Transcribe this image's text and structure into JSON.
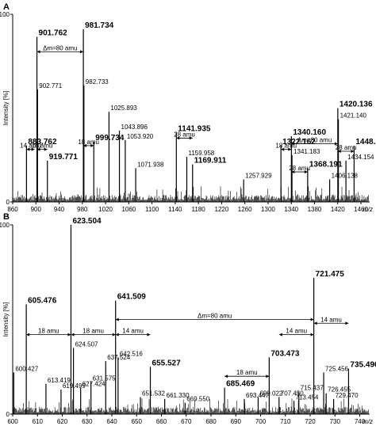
{
  "chart_data": [
    {
      "panel": "A",
      "type": "line",
      "ylabel": "Intensity [%]",
      "xlabel": "m/z",
      "xlim": [
        860,
        1475
      ],
      "ylim": [
        0,
        100
      ],
      "x_ticks": [
        860,
        900,
        940,
        980,
        1020,
        1060,
        1100,
        1140,
        1180,
        1220,
        1260,
        1300,
        1340,
        1380,
        1420,
        1460
      ],
      "y_ticks": [
        0,
        100
      ],
      "peaks": [
        {
          "mz": 901.762,
          "label": "901.762",
          "intensity": 88,
          "bold": true
        },
        {
          "mz": 981.734,
          "label": "981.734",
          "intensity": 92,
          "bold": true
        },
        {
          "mz": 902.771,
          "label": "902.771",
          "intensity": 60,
          "bold": false
        },
        {
          "mz": 982.733,
          "label": "982.733",
          "intensity": 62,
          "bold": false
        },
        {
          "mz": 1025.893,
          "label": "1025.893",
          "intensity": 48,
          "bold": false
        },
        {
          "mz": 883.762,
          "label": "883.762",
          "intensity": 30,
          "bold": true
        },
        {
          "mz": 919.771,
          "label": "919.771",
          "intensity": 22,
          "bold": true
        },
        {
          "mz": 999.734,
          "label": "999.734",
          "intensity": 32,
          "bold": true
        },
        {
          "mz": 1043.896,
          "label": "1043.896",
          "intensity": 38,
          "bold": false
        },
        {
          "mz": 1053.92,
          "label": "1053.920",
          "intensity": 33,
          "bold": false
        },
        {
          "mz": 1071.938,
          "label": "1071.938",
          "intensity": 18,
          "bold": false
        },
        {
          "mz": 1141.935,
          "label": "1141.935",
          "intensity": 37,
          "bold": true
        },
        {
          "mz": 1159.958,
          "label": "1159.958",
          "intensity": 24,
          "bold": false
        },
        {
          "mz": 1169.911,
          "label": "1169.911",
          "intensity": 20,
          "bold": true
        },
        {
          "mz": 1257.929,
          "label": "1257.929",
          "intensity": 12,
          "bold": false
        },
        {
          "mz": 1322.162,
          "label": "1322.162",
          "intensity": 30,
          "bold": true
        },
        {
          "mz": 1340.16,
          "label": "1340.160",
          "intensity": 35,
          "bold": true
        },
        {
          "mz": 1341.183,
          "label": "1341.183",
          "intensity": 25,
          "bold": false
        },
        {
          "mz": 1368.191,
          "label": "1368.191",
          "intensity": 18,
          "bold": true
        },
        {
          "mz": 1406.138,
          "label": "1406.138",
          "intensity": 12,
          "bold": false
        },
        {
          "mz": 1420.136,
          "label": "1420.136",
          "intensity": 50,
          "bold": true
        },
        {
          "mz": 1421.14,
          "label": "1421.140",
          "intensity": 44,
          "bold": false
        },
        {
          "mz": 1434.154,
          "label": "1434.154",
          "intensity": 22,
          "bold": false
        },
        {
          "mz": 1448.174,
          "label": "1448.174",
          "intensity": 30,
          "bold": true
        }
      ],
      "annotations": [
        "Δm=80 amu",
        "14 amu",
        "18 amu",
        "18 amu",
        "28 amu",
        "18 amu",
        "Δm=80 amu",
        "28 amu",
        "28 amu"
      ]
    },
    {
      "panel": "B",
      "type": "line",
      "ylabel": "Intensity [%]",
      "xlabel": "m/z",
      "xlim": [
        600,
        744
      ],
      "ylim": [
        0,
        100
      ],
      "x_ticks": [
        600,
        610,
        620,
        630,
        640,
        650,
        660,
        670,
        680,
        690,
        700,
        710,
        720,
        730,
        740
      ],
      "y_ticks": [
        0,
        100
      ],
      "peaks": [
        {
          "mz": 623.504,
          "label": "623.504",
          "intensity": 100,
          "bold": true
        },
        {
          "mz": 605.476,
          "label": "605.476",
          "intensity": 58,
          "bold": true
        },
        {
          "mz": 641.509,
          "label": "641.509",
          "intensity": 60,
          "bold": true
        },
        {
          "mz": 721.475,
          "label": "721.475",
          "intensity": 72,
          "bold": true
        },
        {
          "mz": 624.507,
          "label": "624.507",
          "intensity": 35,
          "bold": false
        },
        {
          "mz": 642.516,
          "label": "642.516",
          "intensity": 30,
          "bold": false
        },
        {
          "mz": 637.524,
          "label": "637.524",
          "intensity": 28,
          "bold": false
        },
        {
          "mz": 600.427,
          "label": "600.427",
          "intensity": 22,
          "bold": false
        },
        {
          "mz": 613.419,
          "label": "613.419",
          "intensity": 16,
          "bold": false
        },
        {
          "mz": 619.499,
          "label": "619.499",
          "intensity": 13,
          "bold": false
        },
        {
          "mz": 627.424,
          "label": "627.424",
          "intensity": 14,
          "bold": false
        },
        {
          "mz": 631.575,
          "label": "631.575",
          "intensity": 17,
          "bold": false
        },
        {
          "mz": 655.527,
          "label": "655.527",
          "intensity": 25,
          "bold": true
        },
        {
          "mz": 651.532,
          "label": "651.532",
          "intensity": 9,
          "bold": false
        },
        {
          "mz": 661.33,
          "label": "661.330",
          "intensity": 8,
          "bold": false
        },
        {
          "mz": 669.55,
          "label": "669.550",
          "intensity": 6,
          "bold": false
        },
        {
          "mz": 685.469,
          "label": "685.469",
          "intensity": 14,
          "bold": true
        },
        {
          "mz": 693.447,
          "label": "693.447",
          "intensity": 8,
          "bold": false
        },
        {
          "mz": 699.022,
          "label": "699.022",
          "intensity": 9,
          "bold": false
        },
        {
          "mz": 703.473,
          "label": "703.473",
          "intensity": 30,
          "bold": true
        },
        {
          "mz": 707.45,
          "label": "707.450",
          "intensity": 9,
          "bold": false
        },
        {
          "mz": 713.454,
          "label": "713.454",
          "intensity": 7,
          "bold": false
        },
        {
          "mz": 715.437,
          "label": "715.437",
          "intensity": 12,
          "bold": false
        },
        {
          "mz": 725.456,
          "label": "725.456",
          "intensity": 22,
          "bold": false
        },
        {
          "mz": 726.455,
          "label": "726.455",
          "intensity": 11,
          "bold": false
        },
        {
          "mz": 729.47,
          "label": "729.470",
          "intensity": 8,
          "bold": false
        },
        {
          "mz": 735.496,
          "label": "735.496",
          "intensity": 24,
          "bold": true
        }
      ],
      "annotations": [
        "Δm=80 amu",
        "14 amu",
        "18 amu",
        "18 amu",
        "14 amu",
        "18 amu",
        "14 amu"
      ]
    }
  ]
}
